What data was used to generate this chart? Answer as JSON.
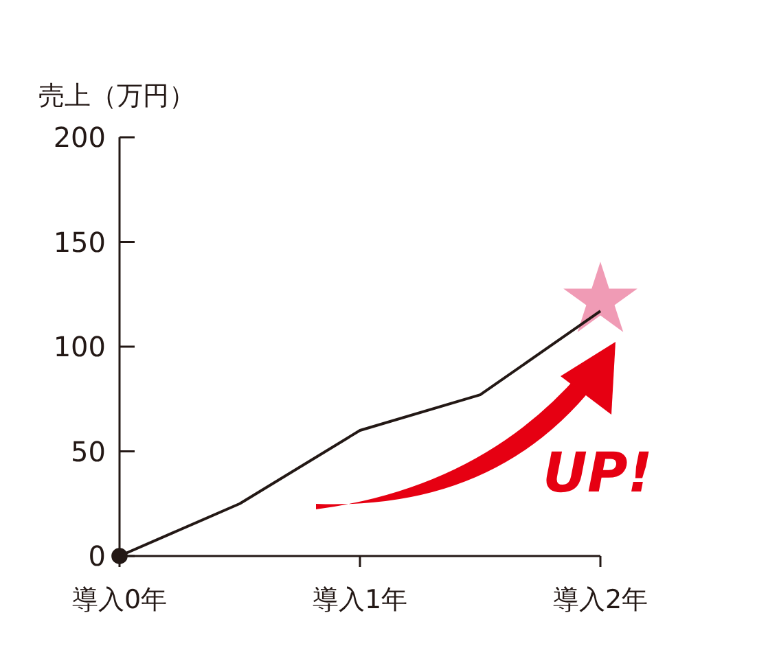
{
  "chart_data": {
    "type": "line",
    "ylabel": "売上（万円）",
    "categories": [
      "導入0年",
      null,
      "導入1年",
      null,
      "導入2年"
    ],
    "ylim": [
      0,
      200
    ],
    "yticks": [
      0,
      50,
      100,
      150,
      200
    ],
    "grid": false,
    "series": [
      {
        "color": "#231815",
        "marker": "none",
        "values": [
          0,
          25,
          60,
          77,
          117
        ]
      },
      {
        "type": "scatter",
        "color": "#231815",
        "marker": "circle",
        "values": [
          0,
          null,
          null,
          null,
          null
        ]
      },
      {
        "type": "scatter",
        "color": "#f09bb5",
        "marker": "star",
        "values": [
          null,
          null,
          null,
          null,
          122
        ]
      }
    ],
    "annotations": [
      "UP!"
    ]
  }
}
